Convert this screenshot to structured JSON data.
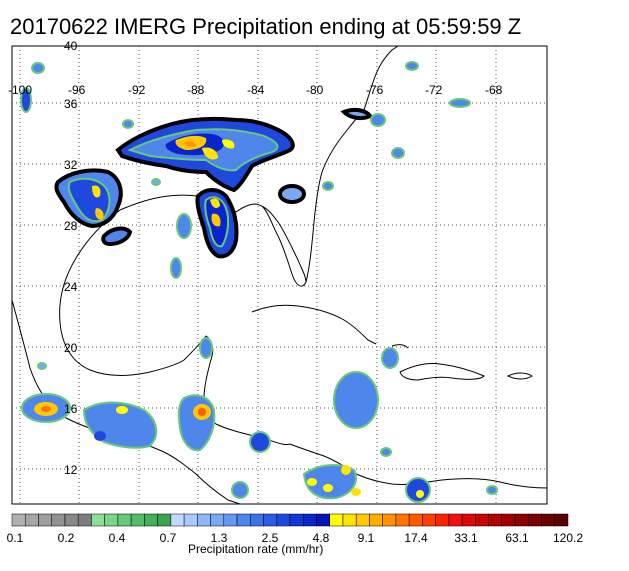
{
  "title": "20170622 IMERG Precipitation ending at 05:59:59 Z",
  "lon_labels": [
    "-100",
    "-96",
    "-92",
    "-88",
    "-84",
    "-80",
    "-76",
    "-72",
    "-68"
  ],
  "lat_labels": [
    "40",
    "36",
    "32",
    "28",
    "24",
    "20",
    "16",
    "12"
  ],
  "colorbar": {
    "title": "Precipitation rate (mm/hr)",
    "tick_labels": [
      "0.1",
      "0.2",
      "0.4",
      "0.7",
      "1.3",
      "2.5",
      "4.8",
      "9.1",
      "17.4",
      "33.1",
      "63.1",
      "120.2"
    ],
    "colors": [
      "#b0b0b0",
      "#a6a6a6",
      "#9c9c9c",
      "#929292",
      "#888888",
      "#7e7e7e",
      "#8edf9a",
      "#7ad58a",
      "#66c97a",
      "#55bd6a",
      "#45b05a",
      "#3aa34f",
      "#c2d8ff",
      "#a9c8fb",
      "#8fb6f5",
      "#7aa8f4",
      "#6598f0",
      "#4f86ec",
      "#3c70e6",
      "#2c5ce2",
      "#1f48df",
      "#1236d8",
      "#0a24cc",
      "#0314b8",
      "#ffff00",
      "#ffe400",
      "#ffc800",
      "#ffac00",
      "#ff9000",
      "#ff7400",
      "#ff5a00",
      "#ff3e00",
      "#ff2200",
      "#f01010",
      "#dc0808",
      "#c80404",
      "#b40000",
      "#a00000",
      "#8c0000",
      "#7a0000",
      "#680000",
      "#560000"
    ]
  }
}
